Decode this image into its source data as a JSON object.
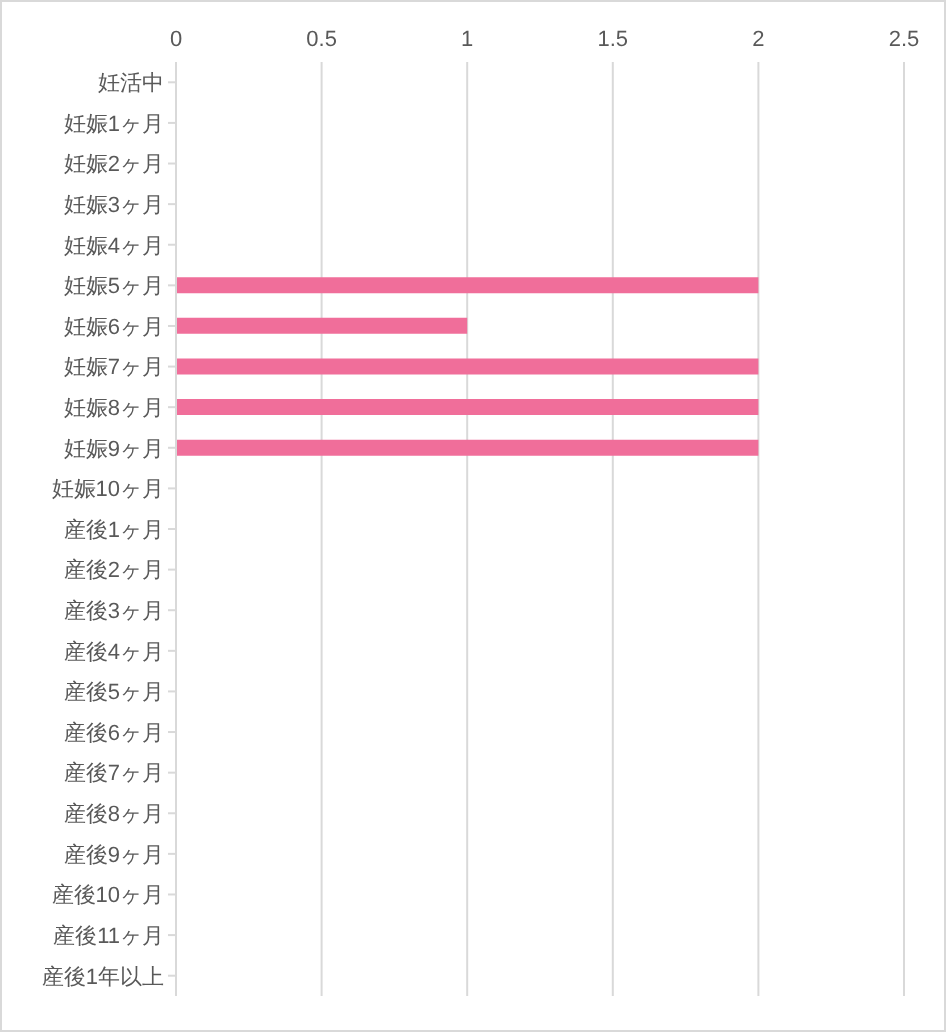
{
  "chart_data": {
    "type": "bar",
    "orientation": "horizontal",
    "categories": [
      "妊活中",
      "妊娠1ヶ月",
      "妊娠2ヶ月",
      "妊娠3ヶ月",
      "妊娠4ヶ月",
      "妊娠5ヶ月",
      "妊娠6ヶ月",
      "妊娠7ヶ月",
      "妊娠8ヶ月",
      "妊娠9ヶ月",
      "妊娠10ヶ月",
      "産後1ヶ月",
      "産後2ヶ月",
      "産後3ヶ月",
      "産後4ヶ月",
      "産後5ヶ月",
      "産後6ヶ月",
      "産後7ヶ月",
      "産後8ヶ月",
      "産後9ヶ月",
      "産後10ヶ月",
      "産後11ヶ月",
      "産後1年以上"
    ],
    "values": [
      0,
      0,
      0,
      0,
      0,
      2,
      1,
      2,
      2,
      2,
      0,
      0,
      0,
      0,
      0,
      0,
      0,
      0,
      0,
      0,
      0,
      0,
      0
    ],
    "color": "#f06e9a",
    "xlim": [
      0,
      2.5
    ],
    "xticks": [
      0,
      0.5,
      1,
      1.5,
      2,
      2.5
    ],
    "grid": "x"
  }
}
